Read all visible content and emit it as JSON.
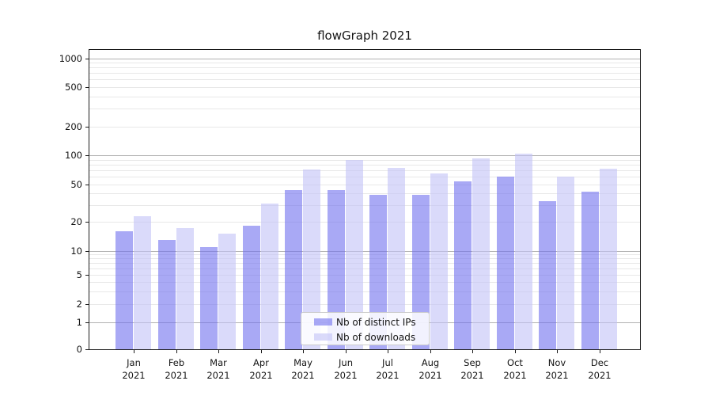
{
  "title": "flowGraph 2021",
  "colors": {
    "ips_bar": "rgba(112,112,238,0.6)",
    "downloads_bar": "rgba(193,193,247,0.6)",
    "grid_major": "#b2b2b2",
    "grid_minor": "#e8e8e8",
    "axis": "#1a1a1a",
    "legend_border": "#cccccc"
  },
  "legend": {
    "items": [
      {
        "label": "Nb of distinct IPs"
      },
      {
        "label": "Nb of downloads"
      }
    ]
  },
  "chart_data": {
    "type": "bar",
    "title": "flowGraph 2021",
    "categories": [
      "Jan",
      "Feb",
      "Mar",
      "Apr",
      "May",
      "Jun",
      "Jul",
      "Aug",
      "Sep",
      "Oct",
      "Nov",
      "Dec"
    ],
    "category_year": "2021",
    "series": [
      {
        "name": "Nb of distinct IPs",
        "color": "rgba(112,112,238,0.6)",
        "values": [
          16,
          13,
          11,
          18,
          44,
          44,
          39,
          39,
          54,
          60,
          33,
          42
        ]
      },
      {
        "name": "Nb of downloads",
        "color": "rgba(193,193,247,0.6)",
        "values": [
          23,
          17,
          15,
          31,
          71,
          90,
          74,
          65,
          93,
          105,
          60,
          73
        ]
      }
    ],
    "y_ticks": [
      0,
      1,
      2,
      5,
      10,
      20,
      50,
      100,
      200,
      500,
      1000
    ],
    "y_scale": "log",
    "ylim": [
      0,
      1255
    ],
    "xlabel": "",
    "ylabel": "",
    "grid": "horizontal",
    "legend_position": "inside-bottom-center"
  }
}
